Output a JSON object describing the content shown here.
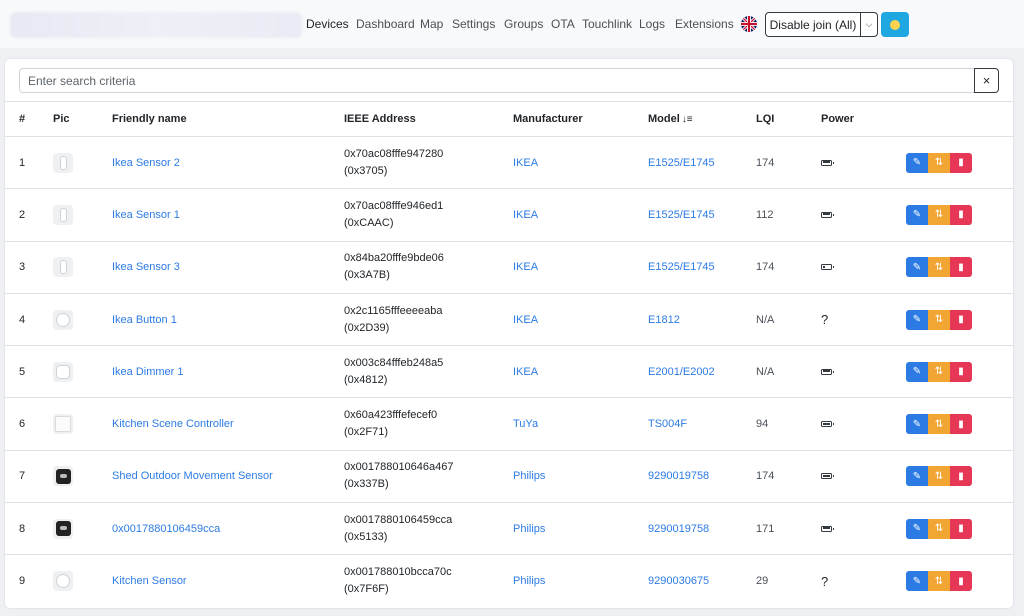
{
  "nav": {
    "items": [
      "Devices",
      "Dashboard",
      "Map",
      "Settings",
      "Groups",
      "OTA",
      "Touchlink",
      "Logs",
      "Extensions"
    ],
    "active": "Devices",
    "join_button": "Disable join (All)"
  },
  "search": {
    "placeholder": "Enter search criteria",
    "clear_label": "×"
  },
  "table": {
    "headers": {
      "num": "#",
      "pic": "Pic",
      "name": "Friendly name",
      "ieee": "IEEE Address",
      "manufacturer": "Manufacturer",
      "model": "Model",
      "lqi": "LQI",
      "power": "Power"
    },
    "sort_column": "model",
    "rows": [
      {
        "num": "1",
        "pic": "sensor",
        "name": "Ikea Sensor 2",
        "ieee": "0x70ac08fffe947280",
        "nwk": "(0x3705)",
        "manufacturer": "IKEA",
        "model": "E1525/E1745",
        "lqi": "174",
        "power": "battery",
        "battery_level": 1.0
      },
      {
        "num": "2",
        "pic": "sensor",
        "name": "Ikea Sensor 1",
        "ieee": "0x70ac08fffe946ed1",
        "nwk": "(0xCAAC)",
        "manufacturer": "IKEA",
        "model": "E1525/E1745",
        "lqi": "112",
        "power": "battery",
        "battery_level": 1.0
      },
      {
        "num": "3",
        "pic": "sensor",
        "name": "Ikea Sensor 3",
        "ieee": "0x84ba20fffe9bde06",
        "nwk": "(0x3A7B)",
        "manufacturer": "IKEA",
        "model": "E1525/E1745",
        "lqi": "174",
        "power": "battery",
        "battery_level": 0.4
      },
      {
        "num": "4",
        "pic": "button",
        "name": "Ikea Button 1",
        "ieee": "0x2c1165fffeeeeaba",
        "nwk": "(0x2D39)",
        "manufacturer": "IKEA",
        "model": "E1812",
        "lqi": "N/A",
        "power": "?",
        "battery_level": null
      },
      {
        "num": "5",
        "pic": "dimmer",
        "name": "Ikea Dimmer 1",
        "ieee": "0x003c84fffeb248a5",
        "nwk": "(0x4812)",
        "manufacturer": "IKEA",
        "model": "E2001/E2002",
        "lqi": "N/A",
        "power": "battery",
        "battery_level": 1.0
      },
      {
        "num": "6",
        "pic": "square",
        "name": "Kitchen Scene Controller",
        "ieee": "0x60a423fffefecef0",
        "nwk": "(0x2F71)",
        "manufacturer": "TuYa",
        "model": "TS004F",
        "lqi": "94",
        "power": "battery",
        "battery_level": 1.0
      },
      {
        "num": "7",
        "pic": "dark",
        "name": "Shed Outdoor Movement Sensor",
        "ieee": "0x001788010646a467",
        "nwk": "(0x337B)",
        "manufacturer": "Philips",
        "model": "9290019758",
        "lqi": "174",
        "power": "battery",
        "battery_level": 1.0
      },
      {
        "num": "8",
        "pic": "dark",
        "name": "0x0017880106459cca",
        "ieee": "0x0017880106459cca",
        "nwk": "(0x5133)",
        "manufacturer": "Philips",
        "model": "9290019758",
        "lqi": "171",
        "power": "battery",
        "battery_level": 1.0
      },
      {
        "num": "9",
        "pic": "button",
        "name": "Kitchen Sensor",
        "ieee": "0x001788010bcca70c",
        "nwk": "(0x7F6F)",
        "manufacturer": "Philips",
        "model": "9290030675",
        "lqi": "29",
        "power": "?",
        "battery_level": null
      }
    ]
  },
  "colors": {
    "link": "#2c7be5",
    "edit": "#2c7be5",
    "rename": "#f1a532",
    "delete": "#e63757",
    "accent": "#1ea7e1"
  },
  "icons": {
    "language": "uk-flag-icon",
    "theme": "emoji-icon",
    "sort": "sort-ascending-icon",
    "edit": "edit-icon",
    "rename": "rename-icon",
    "delete": "trash-icon",
    "power_battery": "battery-icon"
  }
}
